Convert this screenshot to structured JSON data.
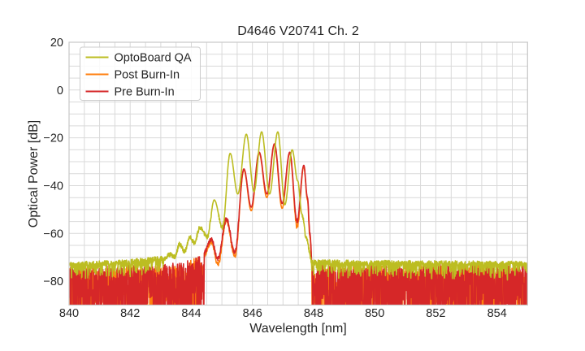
{
  "chart_data": {
    "type": "line",
    "title": "D4646 V20741 Ch. 2",
    "xlabel": "Wavelength [nm]",
    "ylabel": "Optical Power [dB]",
    "xlim": [
      840,
      855
    ],
    "ylim": [
      -90,
      20
    ],
    "xtick_values": [
      840,
      842,
      844,
      846,
      848,
      850,
      852,
      854
    ],
    "xtick_labels": [
      "840",
      "842",
      "844",
      "846",
      "848",
      "850",
      "852",
      "854"
    ],
    "ytick_values": [
      20,
      0,
      -20,
      -40,
      -60,
      -80
    ],
    "ytick_labels": [
      "20",
      "0",
      "−20",
      "−40",
      "−60",
      "−80"
    ],
    "grid": {
      "x_step": 0.5,
      "y_step": 5,
      "color": "#d9d9d9",
      "frame_color": "#c9c9c9",
      "on": true
    },
    "legend_position": "upper left",
    "sample_step_nm": 0.0075,
    "noise_floor_note": "noise floor approx -72 to -90 dB across 840-855 nm; signal band 844-848 nm",
    "series": [
      {
        "name": "Post Burn-In",
        "color": "#ff7f0e",
        "line_width": 1.6,
        "envelope_points": [
          [
            844.42,
            -69.0
          ],
          [
            844.65,
            -63.5
          ],
          [
            844.87,
            -73.0
          ],
          [
            845.15,
            -54.5
          ],
          [
            845.42,
            -70.0
          ],
          [
            845.72,
            -33.5
          ],
          [
            845.96,
            -50.5
          ],
          [
            846.22,
            -26.5
          ],
          [
            846.47,
            -45.0
          ],
          [
            846.72,
            -23.0
          ],
          [
            846.97,
            -49.5
          ],
          [
            847.22,
            -26.5
          ],
          [
            847.46,
            -57.5
          ],
          [
            847.68,
            -32.0
          ],
          [
            847.8,
            -46.0
          ],
          [
            847.88,
            -62.0
          ],
          [
            847.95,
            -74.0
          ]
        ],
        "noise": {
          "seed": 33,
          "up": 3.2,
          "down": 24,
          "skew": 1.6,
          "base": [
            [
              840,
              -74.5
            ],
            [
              843.8,
              -74.5
            ],
            [
              844.05,
              -71.0
            ],
            [
              844.35,
              -71.5
            ],
            [
              844.55,
              -74.5
            ],
            [
              847.95,
              -74.5
            ],
            [
              855,
              -74.5
            ]
          ]
        }
      },
      {
        "name": "Pre Burn-In",
        "color": "#d62728",
        "line_width": 1.6,
        "envelope_points": [
          [
            844.42,
            -68.0
          ],
          [
            844.65,
            -62.5
          ],
          [
            844.87,
            -70.5
          ],
          [
            845.15,
            -54.0
          ],
          [
            845.42,
            -68.0
          ],
          [
            845.72,
            -33.0
          ],
          [
            845.96,
            -49.0
          ],
          [
            846.22,
            -26.0
          ],
          [
            846.47,
            -43.5
          ],
          [
            846.72,
            -22.5
          ],
          [
            846.97,
            -47.5
          ],
          [
            847.22,
            -26.0
          ],
          [
            847.46,
            -55.0
          ],
          [
            847.68,
            -31.5
          ],
          [
            847.8,
            -45.0
          ],
          [
            847.88,
            -60.0
          ],
          [
            847.95,
            -72.0
          ]
        ],
        "noise": {
          "seed": 22,
          "up": 3.2,
          "down": 26,
          "skew": 1.6,
          "base": [
            [
              840,
              -74.0
            ],
            [
              843.8,
              -74.0
            ],
            [
              844.05,
              -70.5
            ],
            [
              844.35,
              -71.0
            ],
            [
              844.55,
              -74.0
            ],
            [
              847.95,
              -74.0
            ],
            [
              855,
              -74.0
            ]
          ]
        }
      },
      {
        "name": "OptoBoard QA",
        "color": "#bcbd22",
        "line_width": 1.6,
        "envelope_points": [
          [
            843.1,
            -71.0
          ],
          [
            843.3,
            -68.8
          ],
          [
            843.46,
            -69.8
          ],
          [
            843.62,
            -64.5
          ],
          [
            843.78,
            -67.5
          ],
          [
            843.95,
            -61.5
          ],
          [
            844.1,
            -64.0
          ],
          [
            844.28,
            -57.5
          ],
          [
            844.52,
            -61.5
          ],
          [
            844.75,
            -46.0
          ],
          [
            845.02,
            -57.5
          ],
          [
            845.27,
            -26.5
          ],
          [
            845.52,
            -43.5
          ],
          [
            845.8,
            -18.5
          ],
          [
            846.05,
            -42.5
          ],
          [
            846.3,
            -17.5
          ],
          [
            846.56,
            -43.5
          ],
          [
            846.83,
            -17.5
          ],
          [
            847.06,
            -48.0
          ],
          [
            847.3,
            -25.0
          ],
          [
            847.48,
            -38.0
          ],
          [
            847.62,
            -52.0
          ],
          [
            847.76,
            -62.0
          ],
          [
            847.92,
            -70.5
          ]
        ],
        "noise": {
          "seed": 11,
          "up": 2.0,
          "down": 6,
          "skew": 5,
          "base": [
            [
              840,
              -72.8
            ],
            [
              841.5,
              -72.2
            ],
            [
              842.5,
              -71.2
            ],
            [
              843.2,
              -70.3
            ],
            [
              847.9,
              -72.0
            ],
            [
              851,
              -72.3
            ],
            [
              855,
              -72.6
            ]
          ]
        }
      }
    ]
  },
  "legend": {
    "items": [
      {
        "label": "OptoBoard QA",
        "color": "#bcbd22"
      },
      {
        "label": "Post Burn-In",
        "color": "#ff7f0e"
      },
      {
        "label": "Pre Burn-In",
        "color": "#d62728"
      }
    ],
    "background": "#ffffff",
    "border_color": "#cccccc"
  },
  "colors": {
    "background": "#ffffff",
    "text": "#262626",
    "grid": "#d9d9d9",
    "frame": "#c9c9c9"
  }
}
